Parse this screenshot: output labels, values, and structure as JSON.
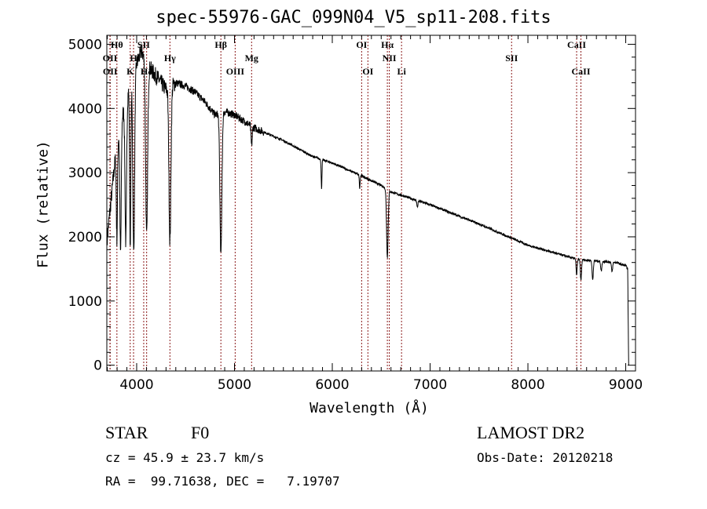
{
  "chart_data": {
    "type": "line",
    "title": "spec-55976-GAC_099N04_V5_sp11-208.fits",
    "xlabel": "Wavelength (Å)",
    "ylabel": "Flux (relative)",
    "xlim": [
      3695,
      9100
    ],
    "ylim": [
      -90,
      5140
    ],
    "x_ticks": [
      4000,
      5000,
      6000,
      7000,
      8000,
      9000
    ],
    "x_tick_labels": [
      "4000",
      "5000",
      "6000",
      "7000",
      "8000",
      "9000"
    ],
    "y_ticks": [
      0,
      1000,
      2000,
      3000,
      4000,
      5000
    ],
    "y_tick_labels": [
      "0",
      "1000",
      "2000",
      "3000",
      "4000",
      "5000"
    ],
    "grid": false,
    "series": [
      {
        "name": "spectrum",
        "color": "#000000",
        "continuum": [
          [
            3700,
            2000
          ],
          [
            3800,
            3500
          ],
          [
            3900,
            4200
          ],
          [
            4000,
            4700
          ],
          [
            4050,
            4900
          ],
          [
            4100,
            4700
          ],
          [
            4200,
            4500
          ],
          [
            4300,
            4300
          ],
          [
            4400,
            4400
          ],
          [
            4500,
            4350
          ],
          [
            4600,
            4250
          ],
          [
            4700,
            4100
          ],
          [
            4800,
            3900
          ],
          [
            4900,
            3950
          ],
          [
            5000,
            3900
          ],
          [
            5200,
            3700
          ],
          [
            5500,
            3500
          ],
          [
            5800,
            3250
          ],
          [
            6000,
            3150
          ],
          [
            6300,
            2950
          ],
          [
            6500,
            2800
          ],
          [
            6600,
            2700
          ],
          [
            7000,
            2500
          ],
          [
            7500,
            2200
          ],
          [
            8000,
            1870
          ],
          [
            8500,
            1650
          ],
          [
            8900,
            1600
          ],
          [
            9000,
            1550
          ],
          [
            9020,
            1500
          ],
          [
            9030,
            0
          ]
        ],
        "absorption": [
          [
            3798,
            1500,
            6
          ],
          [
            3835,
            2000,
            7
          ],
          [
            3889,
            2200,
            8
          ],
          [
            3934,
            2500,
            6
          ],
          [
            3970,
            2800,
            9
          ],
          [
            4102,
            2700,
            10
          ],
          [
            4340,
            2400,
            10
          ],
          [
            4861,
            2200,
            10
          ],
          [
            5175,
            300,
            6
          ],
          [
            5890,
            450,
            4
          ],
          [
            6280,
            200,
            4
          ],
          [
            6563,
            1050,
            8
          ],
          [
            6870,
            100,
            6
          ],
          [
            8498,
            250,
            5
          ],
          [
            8542,
            320,
            6
          ],
          [
            8662,
            300,
            6
          ],
          [
            8750,
            150,
            6
          ],
          [
            8860,
            150,
            6
          ]
        ]
      }
    ],
    "line_markers": {
      "color": "#8b1a1a",
      "items": [
        {
          "label": "Hθ",
          "wavelength": 3798,
          "row": 0
        },
        {
          "label": "OII",
          "wavelength": 3727,
          "row": 1
        },
        {
          "label": "OII",
          "wavelength": 3729,
          "row": 2
        },
        {
          "label": "H",
          "wavelength": 3968,
          "row": 1
        },
        {
          "label": "K",
          "wavelength": 3934,
          "row": 2
        },
        {
          "label": "SII",
          "wavelength": 4072,
          "row": 0
        },
        {
          "label": "Hδ",
          "wavelength": 4102,
          "row": 2
        },
        {
          "label": "Hγ",
          "wavelength": 4340,
          "row": 1
        },
        {
          "label": "Hβ",
          "wavelength": 4861,
          "row": 0
        },
        {
          "label": "OIII",
          "wavelength": 5007,
          "row": 2
        },
        {
          "label": "Mg",
          "wavelength": 5175,
          "row": 1
        },
        {
          "label": "OI",
          "wavelength": 6300,
          "row": 0
        },
        {
          "label": "OI",
          "wavelength": 6364,
          "row": 2
        },
        {
          "label": "Hα",
          "wavelength": 6563,
          "row": 0
        },
        {
          "label": "NII",
          "wavelength": 6583,
          "row": 1
        },
        {
          "label": "Li",
          "wavelength": 6708,
          "row": 2
        },
        {
          "label": "SII",
          "wavelength": 7833,
          "row": 1
        },
        {
          "label": "CaII",
          "wavelength": 8498,
          "row": 0
        },
        {
          "label": "CaII",
          "wavelength": 8542,
          "row": 2
        }
      ]
    }
  },
  "info": {
    "class": "STAR",
    "subclass": "F0",
    "cz": "cz = 45.9 ± 23.7 km/s",
    "coords": "RA =  99.71638, DEC =   7.19707",
    "survey": "LAMOST DR2",
    "obs_date": "Obs-Date: 20120218"
  }
}
